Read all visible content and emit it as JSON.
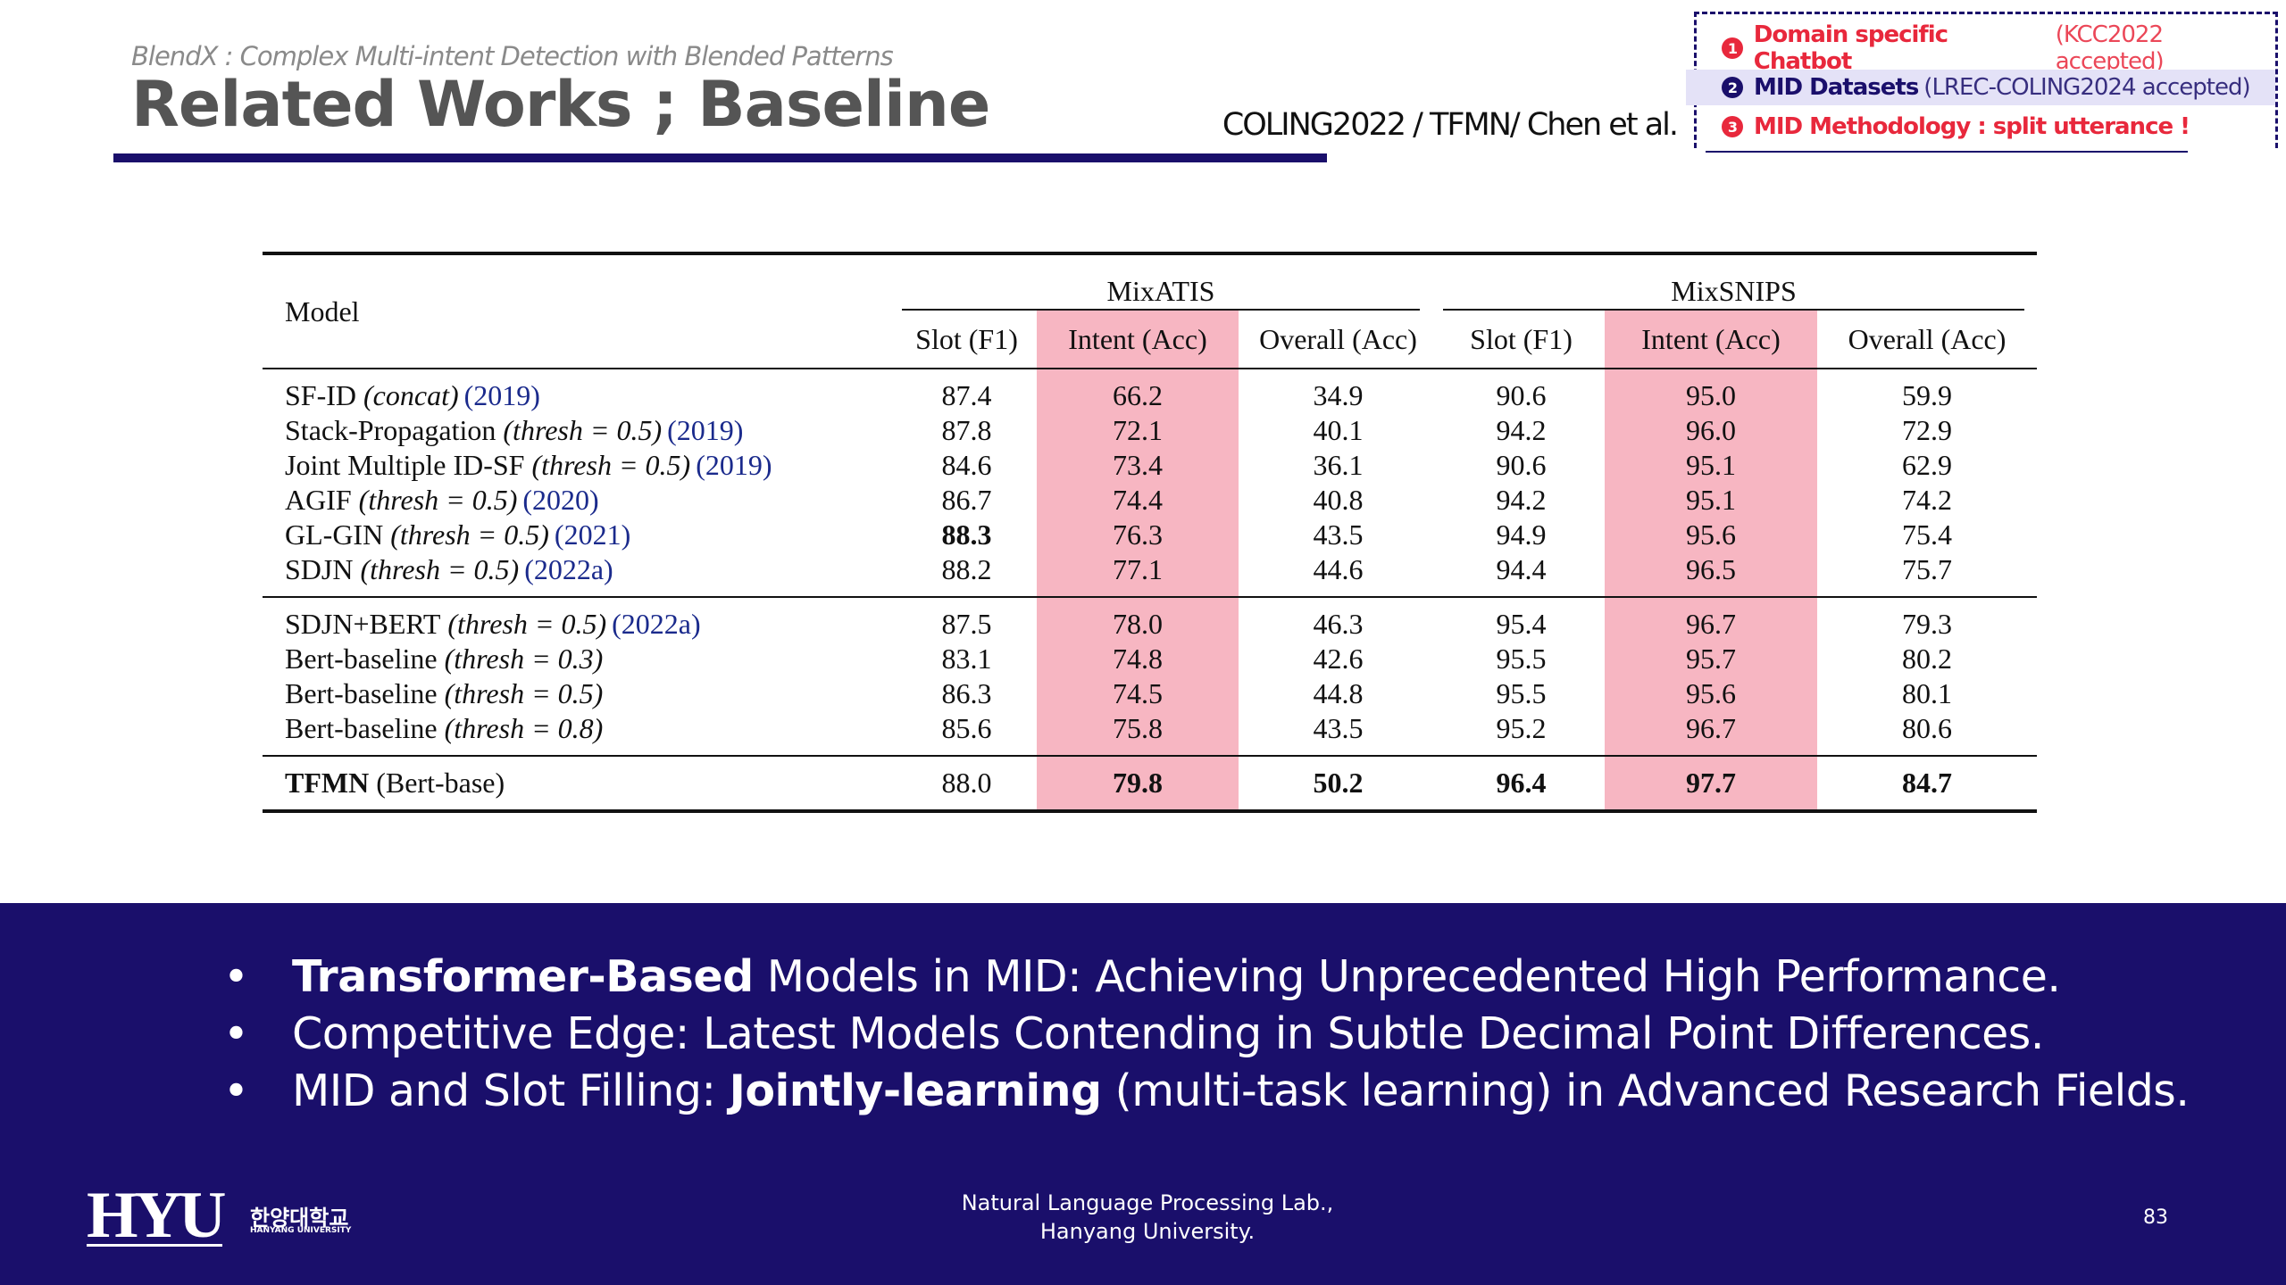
{
  "header": {
    "subtitle": "BlendX : Complex Multi-intent Detection with Blended Patterns",
    "title": "Related Works ; Baseline",
    "citation": "COLING2022 / TFMN/ Chen et al."
  },
  "agenda": {
    "items": [
      {
        "number": "1",
        "title": "Domain specific Chatbot",
        "note": "(KCC2022 accepted)",
        "color": "#e8283c",
        "highlight": false
      },
      {
        "number": "2",
        "title": "MID Datasets",
        "note": "(LREC-COLING2024 accepted)",
        "color": "#1a0f6b",
        "highlight": true
      },
      {
        "number": "3",
        "title": "MID Methodology : split utterance !",
        "note": null,
        "color": "#e8283c",
        "highlight": false
      }
    ]
  },
  "table": {
    "model_header": "Model",
    "datasets": [
      "MixATIS",
      "MixSNIPS"
    ],
    "columns": [
      "Slot (F1)",
      "Intent (Acc)",
      "Overall (Acc)",
      "Slot (F1)",
      "Intent (Acc)",
      "Overall (Acc)"
    ],
    "highlight_columns": [
      1,
      4
    ],
    "highlight_color": "#f7b6c2",
    "cite_color": "#1a2a8c",
    "groups": [
      [
        {
          "name": "SF-ID",
          "args": "(concat)",
          "cite": "(2019)",
          "values": [
            "87.4",
            "66.2",
            "34.9",
            "90.6",
            "95.0",
            "59.9"
          ]
        },
        {
          "name": "Stack-Propagation",
          "args": "(thresh = 0.5)",
          "cite": "(2019)",
          "values": [
            "87.8",
            "72.1",
            "40.1",
            "94.2",
            "96.0",
            "72.9"
          ]
        },
        {
          "name": "Joint Multiple ID-SF",
          "args": "(thresh = 0.5)",
          "cite": "(2019)",
          "values": [
            "84.6",
            "73.4",
            "36.1",
            "90.6",
            "95.1",
            "62.9"
          ]
        },
        {
          "name": "AGIF",
          "args": "(thresh = 0.5)",
          "cite": "(2020)",
          "values": [
            "86.7",
            "74.4",
            "40.8",
            "94.2",
            "95.1",
            "74.2"
          ]
        },
        {
          "name": "GL-GIN",
          "args": "(thresh = 0.5)",
          "cite": "(2021)",
          "values": [
            "88.3",
            "76.3",
            "43.5",
            "94.9",
            "95.6",
            "75.4"
          ],
          "bold_values": [
            0
          ]
        },
        {
          "name": "SDJN",
          "args": "(thresh = 0.5)",
          "cite": "(2022a)",
          "values": [
            "88.2",
            "77.1",
            "44.6",
            "94.4",
            "96.5",
            "75.7"
          ]
        }
      ],
      [
        {
          "name": "SDJN+BERT",
          "args": "(thresh = 0.5)",
          "cite": "(2022a)",
          "values": [
            "87.5",
            "78.0",
            "46.3",
            "95.4",
            "96.7",
            "79.3"
          ]
        },
        {
          "name": "Bert-baseline",
          "args": "(thresh = 0.3)",
          "values": [
            "83.1",
            "74.8",
            "42.6",
            "95.5",
            "95.7",
            "80.2"
          ]
        },
        {
          "name": "Bert-baseline",
          "args": "(thresh = 0.5)",
          "values": [
            "86.3",
            "74.5",
            "44.8",
            "95.5",
            "95.6",
            "80.1"
          ]
        },
        {
          "name": "Bert-baseline",
          "args": "(thresh = 0.8)",
          "values": [
            "85.6",
            "75.8",
            "43.5",
            "95.2",
            "96.7",
            "80.6"
          ]
        }
      ],
      [
        {
          "name": "TFMN",
          "note": "(Bert-base)",
          "values": [
            "88.0",
            "79.8",
            "50.2",
            "96.4",
            "97.7",
            "84.7"
          ],
          "bold_name": true,
          "bold_values": [
            1,
            2,
            3,
            4,
            5
          ]
        }
      ]
    ]
  },
  "bullets": [
    [
      {
        "text": "Transformer-Based",
        "bold": true
      },
      {
        "text": " Models in MID: Achieving Unprecedented High Performance."
      }
    ],
    [
      {
        "text": "Competitive Edge: Latest Models Contending in Subtle Decimal Point Differences."
      }
    ],
    [
      {
        "text": "MID and Slot Filling: "
      },
      {
        "text": "Jointly-learning",
        "bold": true
      },
      {
        "text": " (multi-task learning) in Advanced Research Fields."
      }
    ]
  ],
  "footer": {
    "logo": "HYU",
    "logo_korean": "한양대학교",
    "logo_english": "HANYANG UNIVERSITY",
    "lab": [
      "Natural Language Processing Lab.,",
      "Hanyang University."
    ],
    "page": "83"
  }
}
